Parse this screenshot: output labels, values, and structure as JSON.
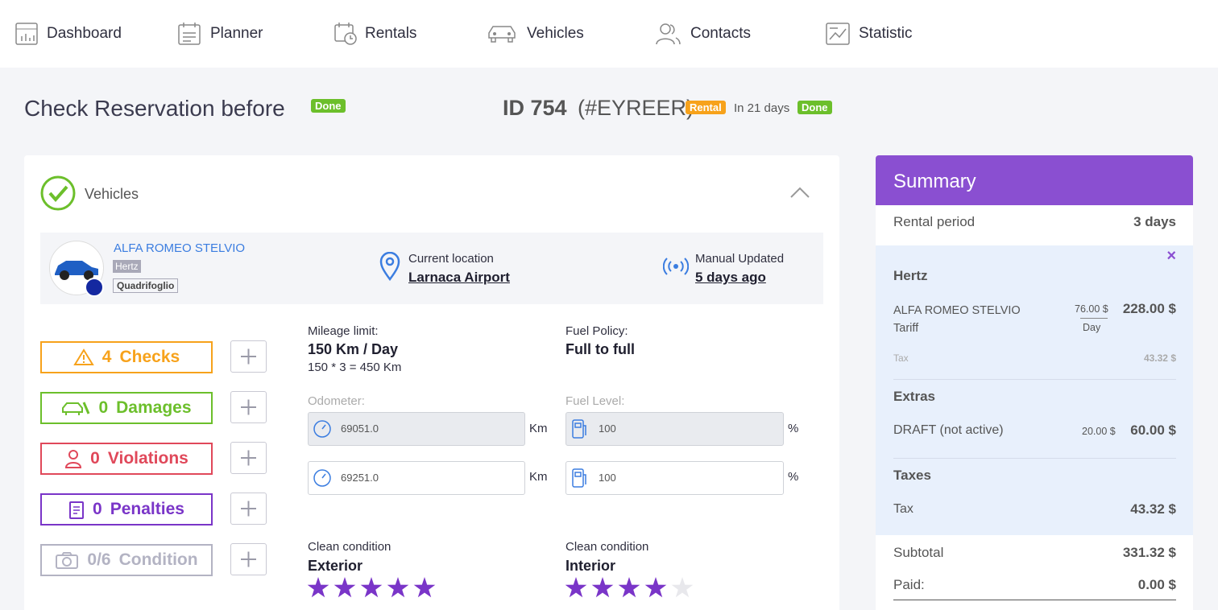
{
  "nav": {
    "items": [
      {
        "label": "Dashboard",
        "dropdown": false
      },
      {
        "label": "Planner",
        "dropdown": true
      },
      {
        "label": "Rentals",
        "dropdown": true
      },
      {
        "label": "Vehicles",
        "dropdown": true
      },
      {
        "label": "Contacts",
        "dropdown": true
      },
      {
        "label": "Statistic",
        "dropdown": false
      }
    ]
  },
  "header": {
    "title": "Check Reservation before",
    "title_badge": "Done",
    "id": "ID 754",
    "code": "(#EYREER)",
    "type_badge": "Rental",
    "timing": "In 21 days",
    "status_badge": "Done"
  },
  "vehicles": {
    "title": "Vehicles",
    "car": {
      "name": "ALFA ROMEO STELVIO",
      "supplier": "Hertz",
      "trim": "Quadrifoglio"
    },
    "location": {
      "label": "Current location",
      "value": "Larnaca Airport"
    },
    "update": {
      "label": "Manual Updated",
      "value": "5 days ago"
    },
    "checks": [
      {
        "count": "4",
        "label": "Checks"
      },
      {
        "count": "0",
        "label": "Damages"
      },
      {
        "count": "0",
        "label": "Violations"
      },
      {
        "count": "0",
        "label": "Penalties"
      },
      {
        "count": "0/6",
        "label": "Condition"
      }
    ],
    "mileage": {
      "label": "Mileage limit:",
      "value": "150 Km / Day",
      "formula": "150 * 3 = 450 Km"
    },
    "fuel_policy": {
      "label": "Fuel Policy:",
      "value": "Full to full"
    },
    "odometer": {
      "label": "Odometer:",
      "values": [
        "69051.0",
        "69251.0"
      ],
      "unit": "Km"
    },
    "fuel_level": {
      "label": "Fuel Level:",
      "values": [
        "100",
        "100"
      ],
      "unit": "%"
    },
    "exterior": {
      "label": "Clean condition",
      "title": "Exterior",
      "rating": 5,
      "max": 5
    },
    "interior": {
      "label": "Clean condition",
      "title": "Interior",
      "rating": 4,
      "max": 5
    }
  },
  "summary": {
    "title": "Summary",
    "period_label": "Rental period",
    "period": "3 days",
    "supplier": "Hertz",
    "tariff_label": "ALFA ROMEO STELVIO Tariff",
    "tariff_rate": "76.00 $",
    "tariff_unit": "Day",
    "tariff_total": "228.00 $",
    "tax_label": "Tax",
    "tax_value": "43.32 $",
    "extras_title": "Extras",
    "extra_label": "DRAFT (not active)",
    "extra_rate": "20.00 $",
    "extra_total": "60.00 $",
    "taxes_title": "Taxes",
    "taxes_label": "Tax",
    "taxes_value": "43.32 $",
    "subtotal_label": "Subtotal",
    "subtotal": "331.32 $",
    "paid_label": "Paid:",
    "paid": "0.00 $"
  }
}
